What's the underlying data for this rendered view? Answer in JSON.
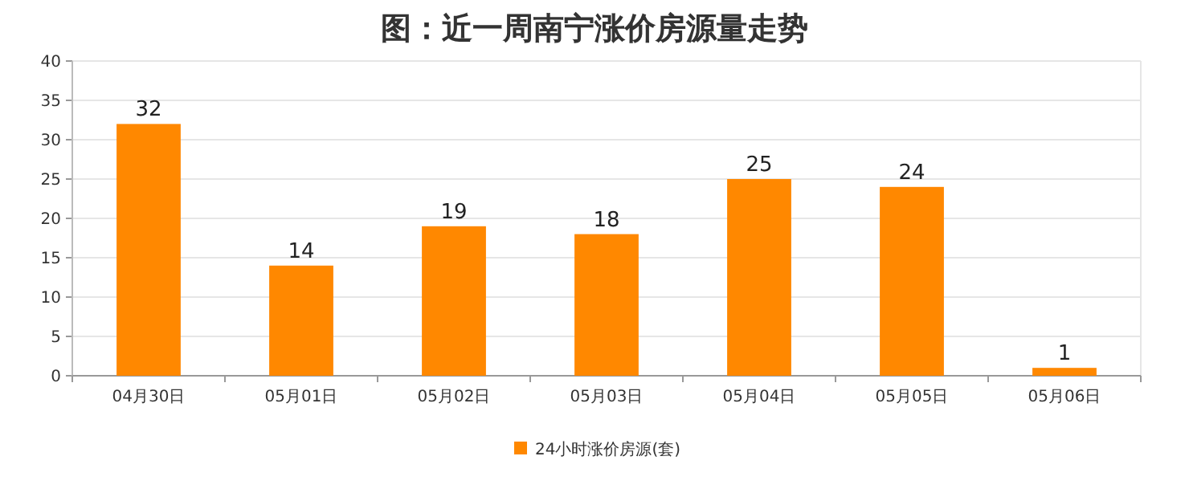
{
  "chart_data": {
    "type": "bar",
    "title": "图：近一周南宁涨价房源量走势",
    "categories": [
      "04月30日",
      "05月01日",
      "05月02日",
      "05月03日",
      "05月04日",
      "05月05日",
      "05月06日"
    ],
    "series": [
      {
        "name": "24小时涨价房源(套)",
        "color": "#ff8800",
        "values": [
          32,
          14,
          19,
          18,
          25,
          24,
          1
        ]
      }
    ],
    "ylim": [
      0,
      40
    ],
    "yticks": [
      0,
      5,
      10,
      15,
      20,
      25,
      30,
      35,
      40
    ],
    "grid": "y",
    "legend": "bottom",
    "data_labels": true
  }
}
